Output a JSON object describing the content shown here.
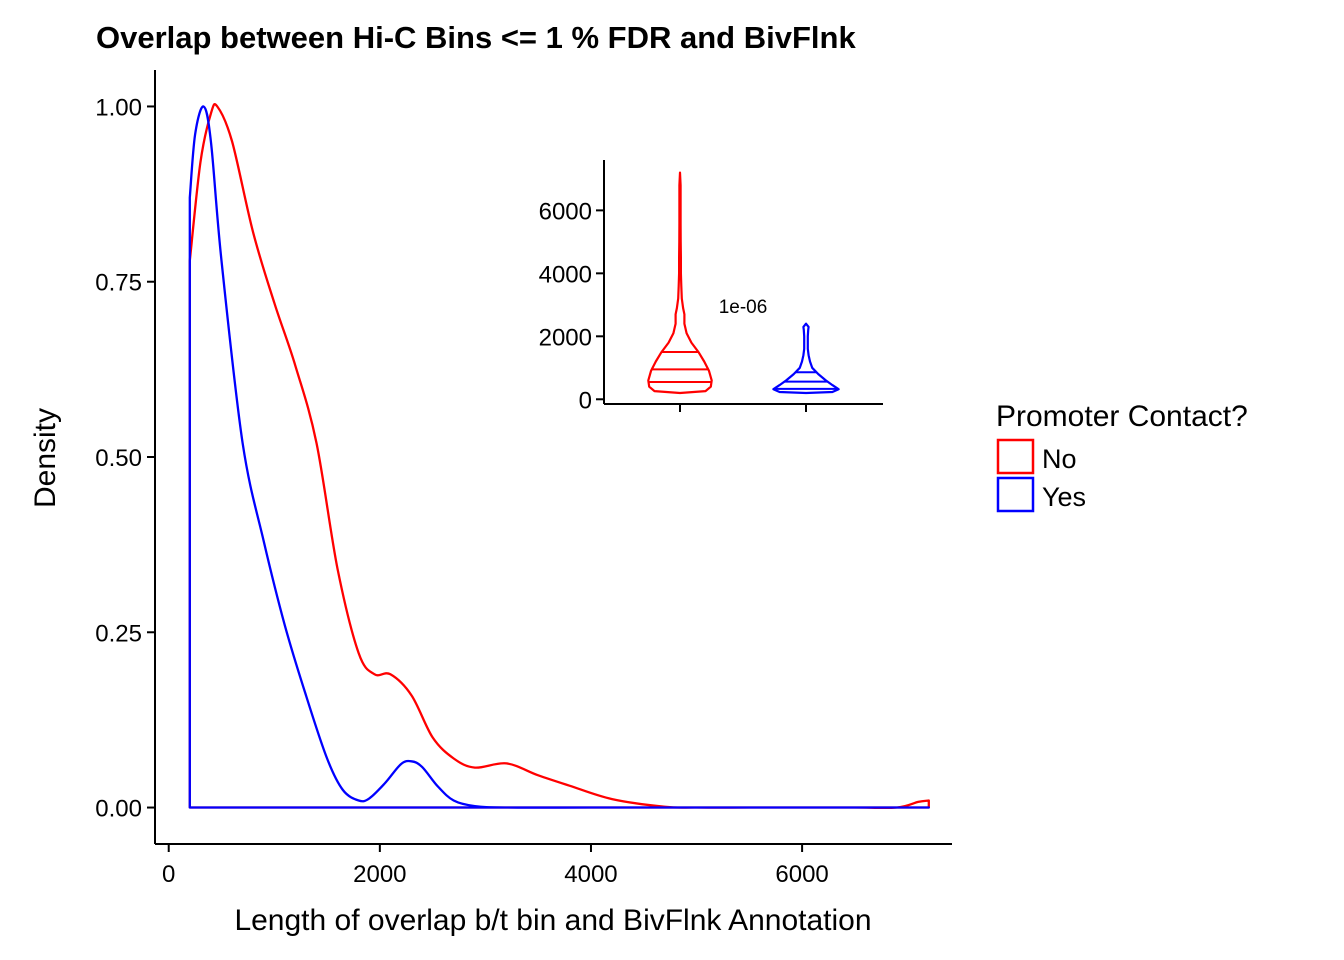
{
  "chart_data": [
    {
      "type": "line",
      "subtype": "density",
      "title": "Overlap between Hi-C Bins <= 1 % FDR and BivFlnk",
      "xlabel": "Length of overlap b/t bin and BivFlnk Annotation",
      "ylabel": "Density",
      "xlim": [
        -130,
        7420
      ],
      "ylim": [
        -0.052,
        1.052
      ],
      "xticks": [
        0,
        2000,
        4000,
        6000
      ],
      "xtick_labels": [
        "0",
        "2000",
        "4000",
        "6000"
      ],
      "yticks": [
        0,
        0.25,
        0.5,
        0.75,
        1.0
      ],
      "ytick_labels": [
        "0.00",
        "0.25",
        "0.50",
        "0.75",
        "1.00"
      ],
      "grid": false,
      "legend": {
        "title": "Promoter Contact?",
        "position": "right"
      },
      "series": [
        {
          "name": "No",
          "color": "#FF0000",
          "x": [
            200,
            300,
            400,
            460,
            600,
            800,
            1000,
            1200,
            1400,
            1600,
            1800,
            1950,
            2100,
            2300,
            2500,
            2700,
            2900,
            3200,
            3500,
            3800,
            4200,
            4700,
            5000,
            5500,
            6000,
            6500,
            6900,
            7100,
            7200
          ],
          "y": [
            0.78,
            0.92,
            0.99,
            1.0,
            0.95,
            0.82,
            0.72,
            0.63,
            0.52,
            0.34,
            0.22,
            0.19,
            0.19,
            0.16,
            0.1,
            0.07,
            0.057,
            0.063,
            0.046,
            0.031,
            0.012,
            0.001,
            0.0,
            0.0,
            0.0,
            0.0,
            0.0,
            0.008,
            0.01
          ]
        },
        {
          "name": "Yes",
          "color": "#0000FF",
          "x": [
            200,
            250,
            330,
            400,
            500,
            700,
            900,
            1100,
            1300,
            1500,
            1650,
            1800,
            1900,
            2050,
            2200,
            2300,
            2400,
            2550,
            2700,
            2900,
            3200,
            4000,
            5000,
            6000,
            7000,
            7200
          ],
          "y": [
            0.87,
            0.96,
            1.0,
            0.95,
            0.78,
            0.52,
            0.38,
            0.26,
            0.16,
            0.07,
            0.025,
            0.01,
            0.013,
            0.035,
            0.062,
            0.066,
            0.058,
            0.03,
            0.01,
            0.002,
            0.0,
            0.0,
            0.0,
            0.0,
            0.0,
            0.0
          ]
        }
      ]
    },
    {
      "type": "violin",
      "ylim": [
        -150,
        7600
      ],
      "yticks": [
        0,
        2000,
        4000,
        6000
      ],
      "ytick_labels": [
        "0",
        "2000",
        "4000",
        "6000"
      ],
      "annotation": "1e-06",
      "series": [
        {
          "name": "No",
          "color": "#FF0000",
          "quantiles": [
            550,
            950,
            1500
          ],
          "profile": [
            [
              200,
              0.0
            ],
            [
              260,
              0.58
            ],
            [
              400,
              0.7
            ],
            [
              600,
              0.72
            ],
            [
              900,
              0.66
            ],
            [
              1200,
              0.55
            ],
            [
              1500,
              0.42
            ],
            [
              1800,
              0.26
            ],
            [
              2100,
              0.15
            ],
            [
              2400,
              0.1
            ],
            [
              2700,
              0.1
            ],
            [
              2900,
              0.07
            ],
            [
              3200,
              0.04
            ],
            [
              3600,
              0.03
            ],
            [
              4000,
              0.02
            ],
            [
              4500,
              0.02
            ],
            [
              5000,
              0.015
            ],
            [
              5600,
              0.013
            ],
            [
              6200,
              0.013
            ],
            [
              6800,
              0.013
            ],
            [
              7200,
              0.0
            ]
          ]
        },
        {
          "name": "Yes",
          "color": "#0000FF",
          "quantiles": [
            330,
            560,
            860
          ],
          "profile": [
            [
              200,
              0.0
            ],
            [
              230,
              0.6
            ],
            [
              320,
              0.74
            ],
            [
              450,
              0.6
            ],
            [
              600,
              0.45
            ],
            [
              800,
              0.28
            ],
            [
              1000,
              0.14
            ],
            [
              1200,
              0.09
            ],
            [
              1400,
              0.06
            ],
            [
              1600,
              0.04
            ],
            [
              1800,
              0.04
            ],
            [
              2000,
              0.04
            ],
            [
              2200,
              0.05
            ],
            [
              2300,
              0.06
            ],
            [
              2400,
              0.0
            ]
          ]
        }
      ]
    }
  ]
}
